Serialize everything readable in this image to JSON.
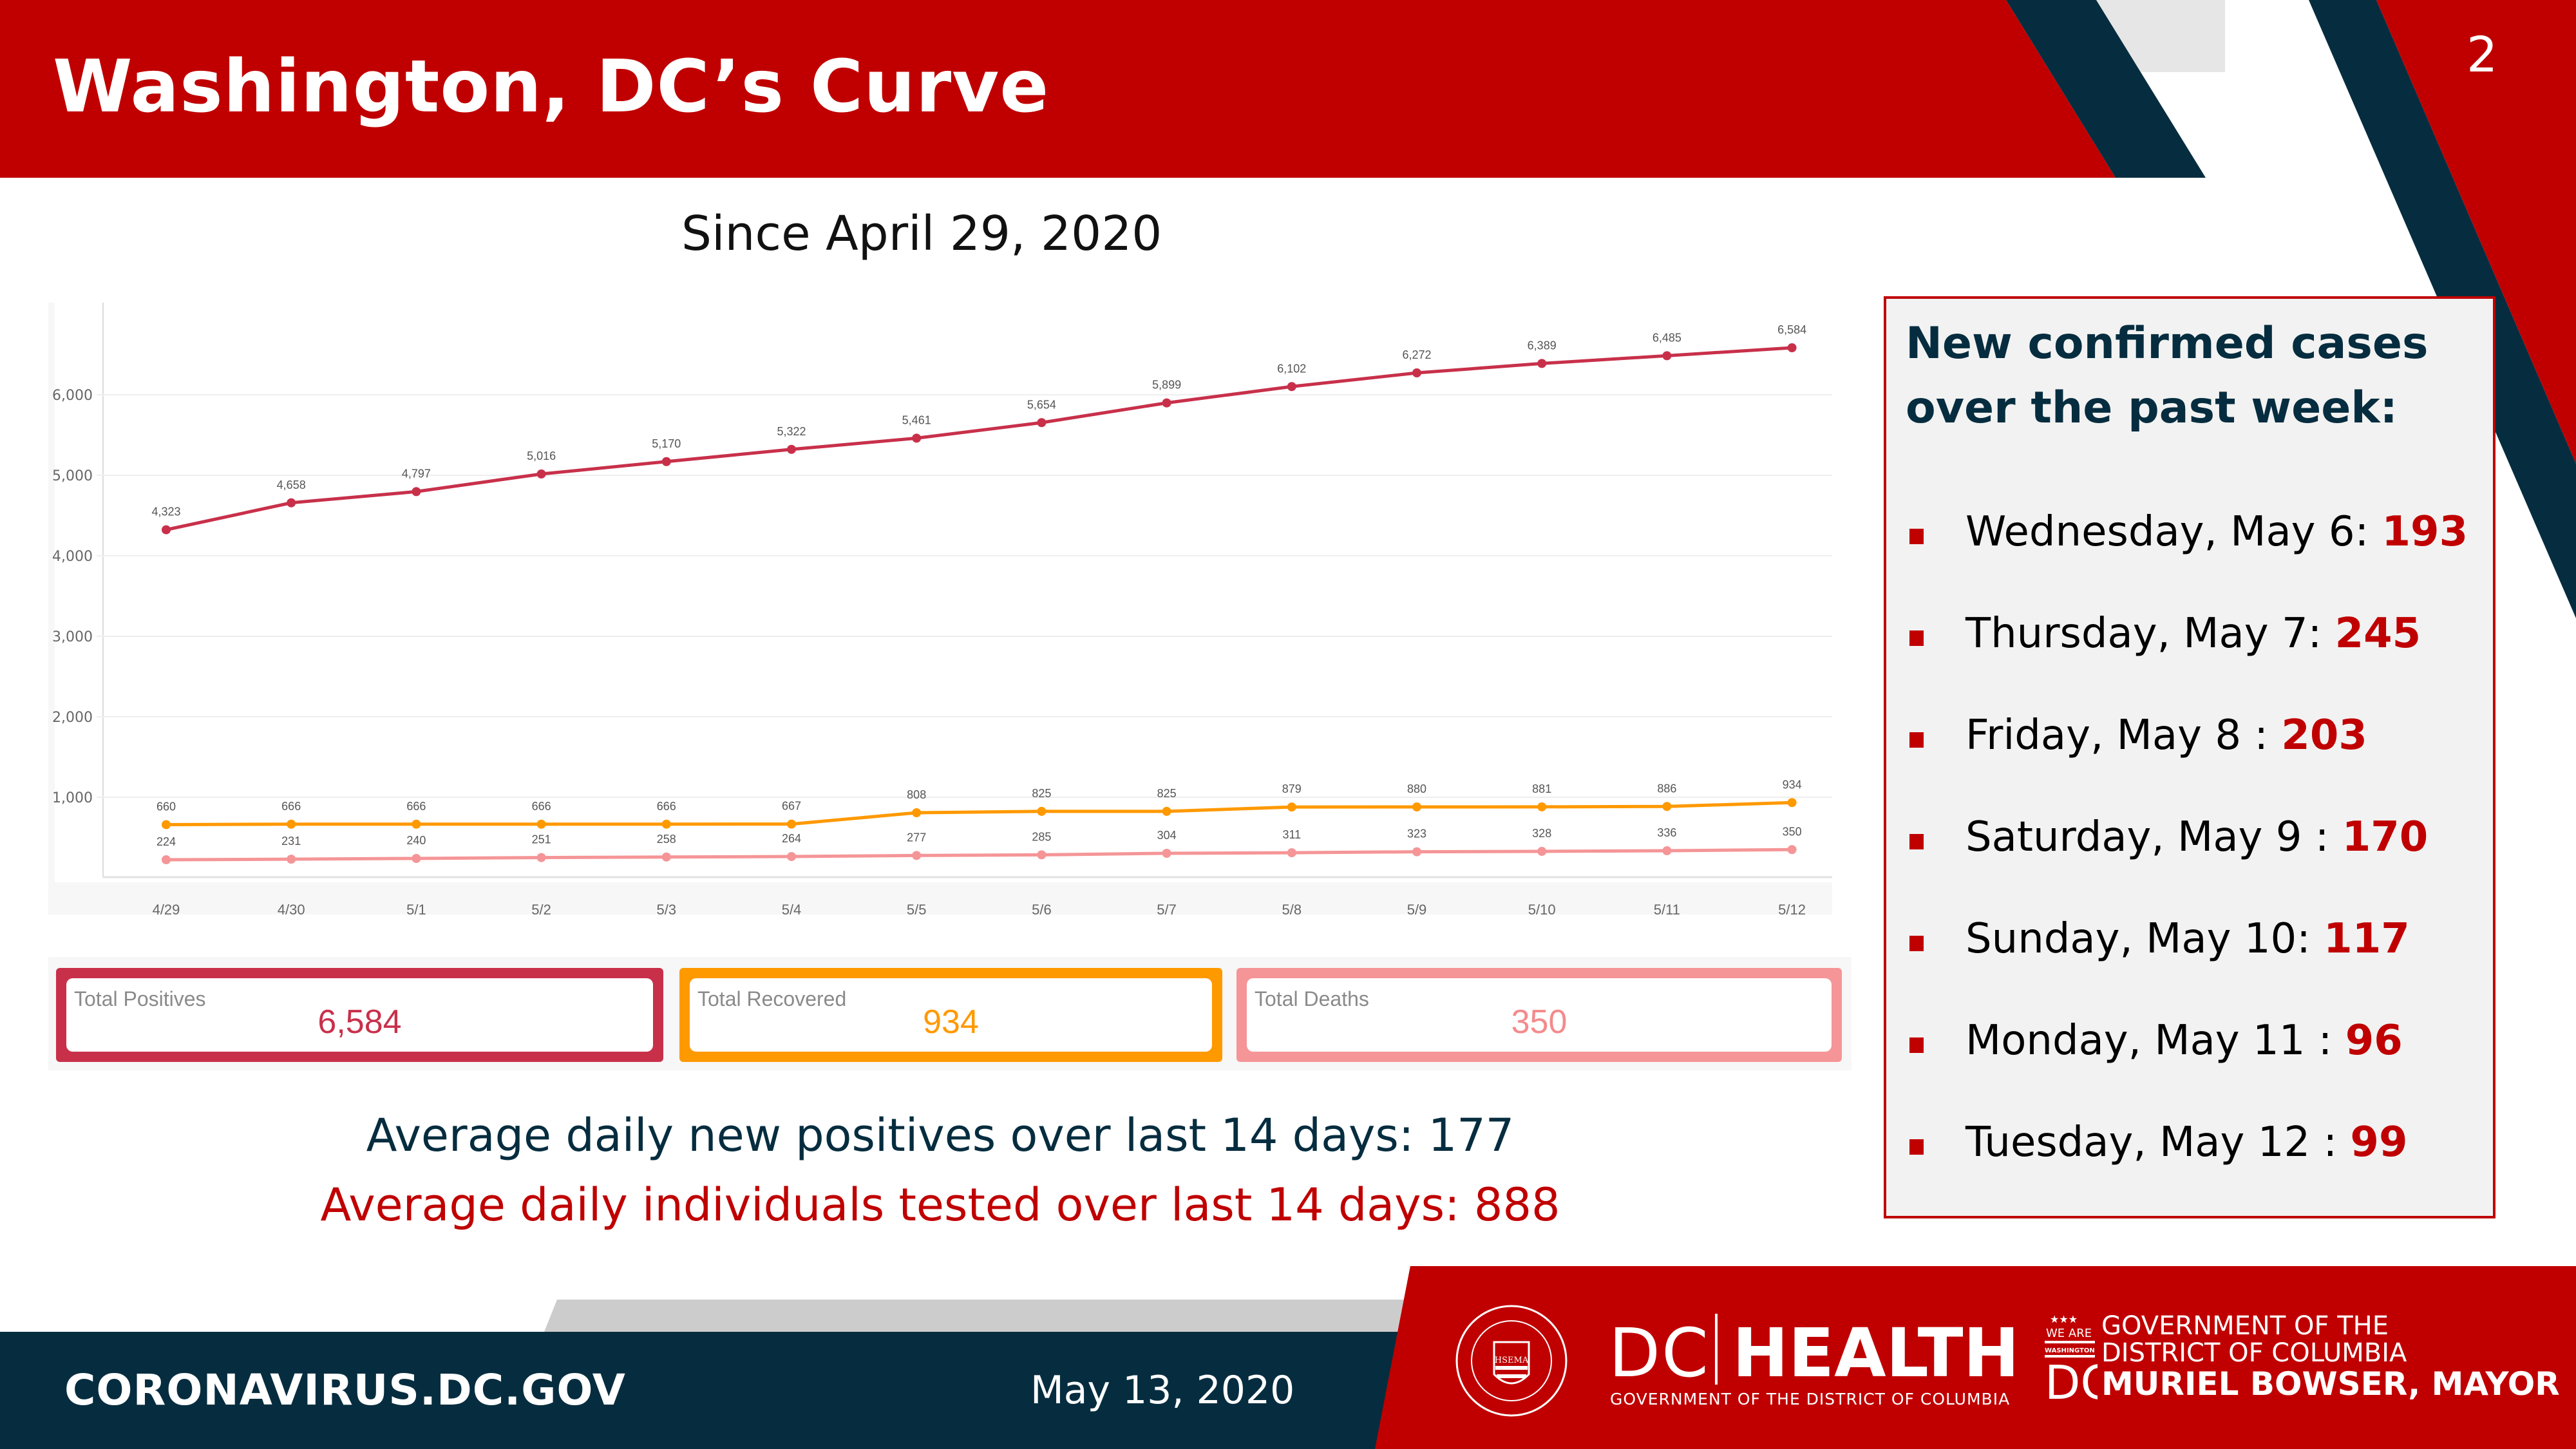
{
  "header": {
    "title": "Washington, DC’s Curve",
    "page_number": "2",
    "subtitle": "Since April 29, 2020",
    "colors": {
      "red": "#c00000",
      "navy": "#062d3f",
      "light_gray": "#e6e6e6"
    }
  },
  "chart_data": {
    "type": "line",
    "title": "",
    "xlabel": "",
    "ylabel": "",
    "x": [
      "4/29",
      "4/30",
      "5/1",
      "5/2",
      "5/3",
      "5/4",
      "5/5",
      "5/6",
      "5/7",
      "5/8",
      "5/9",
      "5/10",
      "5/11",
      "5/12"
    ],
    "y_ticks": [
      1000,
      2000,
      3000,
      4000,
      5000,
      6000
    ],
    "y_tick_labels": [
      "1,000",
      "2,000",
      "3,000",
      "4,000",
      "5,000",
      "6,000"
    ],
    "ylim": [
      0,
      7000
    ],
    "grid": true,
    "legend": "none",
    "series": [
      {
        "name": "Total Positives",
        "color": "#c8304a",
        "values": [
          4323,
          4658,
          4797,
          5016,
          5170,
          5322,
          5461,
          5654,
          5899,
          6102,
          6272,
          6389,
          6485,
          6584
        ],
        "labels": [
          "4,323",
          "4,658",
          "4,797",
          "5,016",
          "5,170",
          "5,322",
          "5,461",
          "5,654",
          "5,899",
          "6,102",
          "6,272",
          "6,389",
          "6,485",
          "6,584"
        ]
      },
      {
        "name": "Total Recovered",
        "color": "#ff9900",
        "values": [
          660,
          666,
          666,
          666,
          666,
          667,
          808,
          825,
          825,
          879,
          880,
          881,
          886,
          934
        ],
        "labels": [
          "660",
          "666",
          "666",
          "666",
          "666",
          "667",
          "808",
          "825",
          "825",
          "879",
          "880",
          "881",
          "886",
          "934"
        ]
      },
      {
        "name": "Total Deaths",
        "color": "#f59597",
        "values": [
          224,
          231,
          240,
          251,
          258,
          264,
          277,
          285,
          304,
          311,
          323,
          328,
          336,
          350
        ],
        "labels": [
          "224",
          "231",
          "240",
          "251",
          "258",
          "264",
          "277",
          "285",
          "304",
          "311",
          "323",
          "328",
          "336",
          "350"
        ]
      }
    ]
  },
  "stats": [
    {
      "label": "Total Positives",
      "value": "6,584",
      "color": "#c8304a",
      "border": "#c8304a"
    },
    {
      "label": "Total Recovered",
      "value": "934",
      "color": "#ff9900",
      "border": "#ff9900"
    },
    {
      "label": "Total Deaths",
      "value": "350",
      "color": "#f48a8c",
      "border": "#f59597"
    }
  ],
  "averages": {
    "positives": "Average daily new positives over last 14 days: 177",
    "tested": "Average daily individuals tested over last 14 days: 888"
  },
  "side_panel": {
    "title": "New confirmed cases over the past week:",
    "items": [
      {
        "label": "Wednesday, May 6: ",
        "value": "193"
      },
      {
        "label": "Thursday, May 7: ",
        "value": "245"
      },
      {
        "label": "Friday, May 8 : ",
        "value": "203"
      },
      {
        "label": "Saturday, May 9 : ",
        "value": "170"
      },
      {
        "label": "Sunday, May 10: ",
        "value": "117"
      },
      {
        "label": "Monday, May 11 : ",
        "value": "96"
      },
      {
        "label": "Tuesday, May 12 : ",
        "value": "99"
      }
    ]
  },
  "footer": {
    "url": "CORONAVIRUS.DC.GOV",
    "date": "May 13, 2020",
    "hsema_seal_text": "HSEMA",
    "dc_health_dc": "DC",
    "dc_health_health": "HEALTH",
    "dc_health_sub": "GOVERNMENT OF THE DISTRICT OF COLUMBIA",
    "we_are": "WE ARE",
    "washington": "WASHINGTON",
    "dc_mark": "DC",
    "gov_line1": "GOVERNMENT OF THE",
    "gov_line2": "DISTRICT OF COLUMBIA",
    "gov_line3": "MURIEL BOWSER, MAYOR"
  }
}
